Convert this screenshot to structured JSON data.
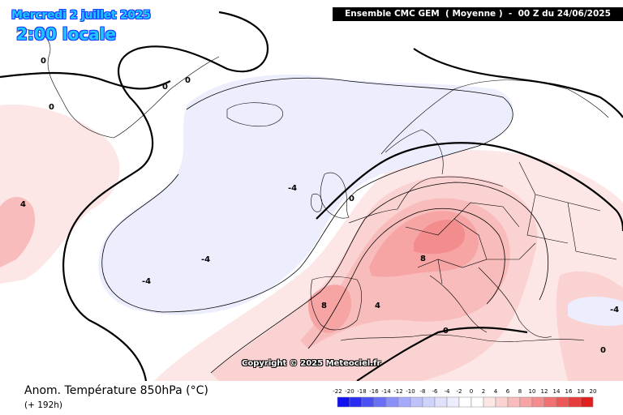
{
  "header": {
    "date": "Mercredi 2 juillet 2025",
    "time": "2:00 locale",
    "model": "Ensemble CMC GEM  ( Moyenne )  -  00 Z du 24/06/2025"
  },
  "copyright": "Copyright © 2025 Meteociel.fr",
  "footer": {
    "parameter": "Anom. Température 850hPa (°C)",
    "forecast_hour": "(+ 192h)"
  },
  "legend": {
    "ticks": [
      "-22",
      "-20",
      "-18",
      "-16",
      "-14",
      "-12",
      "-10",
      "-8",
      "-6",
      "-4",
      "-2",
      "0",
      "2",
      "4",
      "6",
      "8",
      "10",
      "12",
      "14",
      "16",
      "18",
      "20"
    ],
    "colors": [
      "#1010f0",
      "#2a2ef2",
      "#4a50f4",
      "#6a70f6",
      "#8a90f8",
      "#a6aafa",
      "#bcc0fb",
      "#d0d3fc",
      "#dfe1fd",
      "#eceefe",
      "#ffffff",
      "#ffffff",
      "#fde6e6",
      "#fbd2d2",
      "#f9bcbc",
      "#f6a4a4",
      "#f38c8c",
      "#f07272",
      "#ec5858",
      "#e73c3c",
      "#e02020"
    ]
  },
  "isotherm_labels": [
    {
      "text": "0",
      "kind": "zero"
    },
    {
      "text": "0",
      "kind": "zero"
    },
    {
      "text": "0",
      "kind": "zero"
    },
    {
      "text": "0",
      "kind": "zero"
    },
    {
      "text": "0",
      "kind": "zero"
    },
    {
      "text": "-4",
      "kind": "cold"
    },
    {
      "text": "-4",
      "kind": "cold"
    },
    {
      "text": "-4",
      "kind": "cold"
    },
    {
      "text": "-4",
      "kind": "cold"
    },
    {
      "text": "4",
      "kind": "warm"
    },
    {
      "text": "4",
      "kind": "warm"
    },
    {
      "text": "8",
      "kind": "warm"
    },
    {
      "text": "8",
      "kind": "warm"
    },
    {
      "text": "0",
      "kind": "zero"
    },
    {
      "text": "0",
      "kind": "zero"
    }
  ]
}
